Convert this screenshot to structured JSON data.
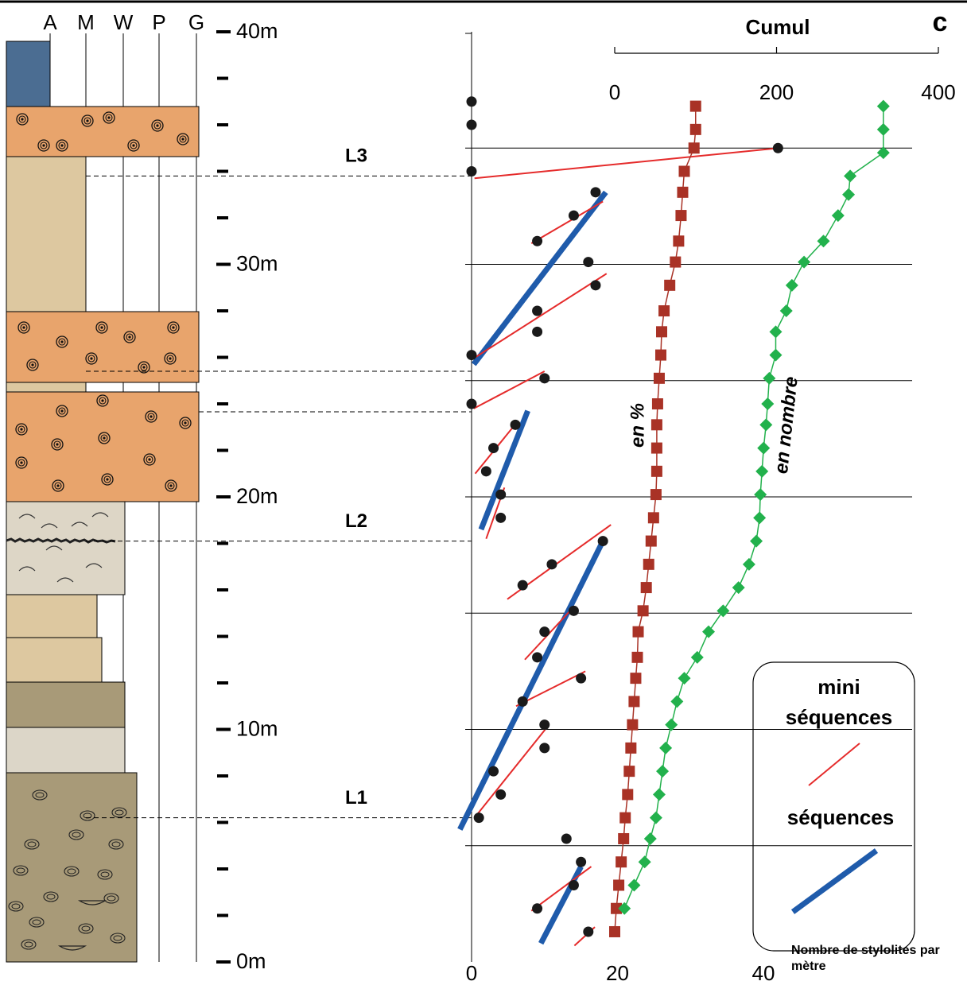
{
  "column": {
    "headers": [
      "A",
      "M",
      "W",
      "P",
      "G"
    ]
  },
  "chart_data": [
    {
      "type": "scatter",
      "x_label": "Nombre de stylolites par mètre",
      "xlim": [
        0,
        40
      ],
      "xticks": [
        0,
        20,
        40
      ],
      "ylim": [
        0,
        40
      ],
      "yticks": [
        {
          "value": 0,
          "label": "0m"
        },
        {
          "value": 10,
          "label": "10m"
        },
        {
          "value": 20,
          "label": "20m"
        },
        {
          "value": 30,
          "label": "30m"
        },
        {
          "value": 40,
          "label": "40m"
        }
      ],
      "yminor_ticks": [
        2,
        4,
        6,
        8,
        12,
        14,
        16,
        18,
        22,
        24,
        26,
        28,
        32,
        34,
        36,
        38
      ],
      "grid_depths": [
        5,
        10,
        15,
        20,
        25,
        30,
        35
      ],
      "series": [
        {
          "color": "#1a1a1a",
          "depth": [
            1.3,
            2.3,
            3.3,
            4.3,
            5.3,
            6.2,
            7.2,
            8.2,
            9.2,
            10.2,
            11.2,
            12.2,
            13.1,
            14.2,
            15.1,
            16.2,
            17.1,
            18.1,
            19.1,
            20.1,
            21.1,
            22.1,
            23.1,
            24,
            25.1,
            26.1,
            27.1,
            28,
            29.1,
            30.1,
            31,
            32.1,
            33.1,
            34,
            35,
            36,
            37
          ],
          "values": [
            16,
            9,
            14,
            15,
            13,
            1,
            4,
            3,
            10,
            10,
            7,
            15,
            9,
            10,
            14,
            7,
            11,
            18,
            4,
            4,
            2,
            3,
            6,
            0,
            10,
            0,
            9,
            9,
            17,
            16,
            9,
            14,
            17,
            0,
            42,
            0,
            0
          ]
        }
      ],
      "mini_sequences": {
        "name": "mini séquences",
        "color": "#e52b2b",
        "lines": [
          {
            "x": [
              0.4,
              42.1
            ],
            "depth": [
              33.7,
              35.0
            ]
          },
          {
            "x": [
              8.2,
              18
            ],
            "depth": [
              30.9,
              32.7
            ]
          },
          {
            "x": [
              0.5,
              18.5
            ],
            "depth": [
              26.0,
              29.6
            ]
          },
          {
            "x": [
              0.3,
              10
            ],
            "depth": [
              23.8,
              25.4
            ]
          },
          {
            "x": [
              0.5,
              6.2
            ],
            "depth": [
              21.0,
              23.2
            ]
          },
          {
            "x": [
              2,
              4.5
            ],
            "depth": [
              18.2,
              20.4
            ]
          },
          {
            "x": [
              4.9,
              19.1
            ],
            "depth": [
              15.6,
              18.8
            ]
          },
          {
            "x": [
              7.3,
              14.1
            ],
            "depth": [
              13.0,
              15.3
            ]
          },
          {
            "x": [
              6.1,
              15.6
            ],
            "depth": [
              11.0,
              12.5
            ]
          },
          {
            "x": [
              0.4,
              10.1
            ],
            "depth": [
              6.2,
              10.0
            ]
          },
          {
            "x": [
              8.2,
              16.4
            ],
            "depth": [
              2.2,
              4.1
            ]
          },
          {
            "x": [
              14.1,
              16.9
            ],
            "depth": [
              0.7,
              1.5
            ]
          }
        ]
      },
      "sequences": {
        "name": "séquences",
        "color": "#1f5bab",
        "lines": [
          {
            "x": [
              0.3,
              18.4
            ],
            "depth": [
              25.7,
              33.1
            ]
          },
          {
            "x": [
              1.3,
              7.7
            ],
            "depth": [
              18.6,
              23.7
            ]
          },
          {
            "x": [
              -1.6,
              18
            ],
            "depth": [
              5.7,
              18.1
            ]
          },
          {
            "x": [
              9.5,
              15
            ],
            "depth": [
              0.8,
              4.1
            ]
          }
        ]
      },
      "annotations": [
        {
          "text": "L1",
          "depth": 6.2
        },
        {
          "text": "L2",
          "depth": 18.1
        },
        {
          "text": "L3",
          "depth": 33.8
        }
      ]
    },
    {
      "type": "line",
      "title": "Cumul",
      "panel_label": "c",
      "xlim": [
        0,
        400
      ],
      "xticks": [
        0,
        200,
        400
      ],
      "series": [
        {
          "name": "en %",
          "color": "#a93226",
          "marker": "square",
          "depth": [
            1.3,
            2.3,
            3.3,
            4.3,
            5.3,
            6.2,
            7.2,
            8.2,
            9.2,
            10.2,
            11.2,
            12.2,
            13.1,
            14.2,
            15.1,
            16.1,
            17.1,
            18.1,
            19.1,
            20.1,
            21.1,
            22.1,
            23.1,
            24,
            25.1,
            26.1,
            27.1,
            28,
            29.1,
            30.1,
            31,
            32.1,
            33.1,
            34,
            35,
            35.8,
            36.8
          ],
          "values": [
            0,
            2,
            5,
            8,
            11,
            13,
            16,
            18,
            20,
            22,
            24,
            26,
            28,
            29,
            35,
            39,
            42,
            45,
            48,
            51,
            52,
            52,
            52,
            53,
            55,
            57,
            58,
            61,
            68,
            75,
            79,
            82,
            84,
            86,
            98,
            100,
            100
          ]
        },
        {
          "name": "en nombre",
          "color": "#22b14c",
          "marker": "diamond",
          "depth": [
            2.3,
            3.3,
            4.3,
            5.3,
            6.2,
            7.2,
            8.2,
            9.2,
            10.2,
            11.2,
            12.2,
            13.1,
            14.2,
            15.1,
            16.1,
            17.1,
            18.1,
            19.1,
            20.1,
            21.1,
            22.1,
            23.1,
            24,
            25.1,
            26.1,
            27.1,
            28,
            29.1,
            30.1,
            31,
            32.1,
            33,
            33.8,
            34.8,
            35.8,
            36.8
          ],
          "values": [
            12,
            24,
            37,
            44,
            51,
            55,
            59,
            63,
            70,
            77,
            86,
            102,
            116,
            134,
            153,
            166,
            175,
            179,
            180,
            182,
            184,
            187,
            189,
            191,
            199,
            199,
            212,
            219,
            234,
            258,
            276,
            289,
            291,
            332,
            332,
            332
          ]
        }
      ]
    }
  ]
}
